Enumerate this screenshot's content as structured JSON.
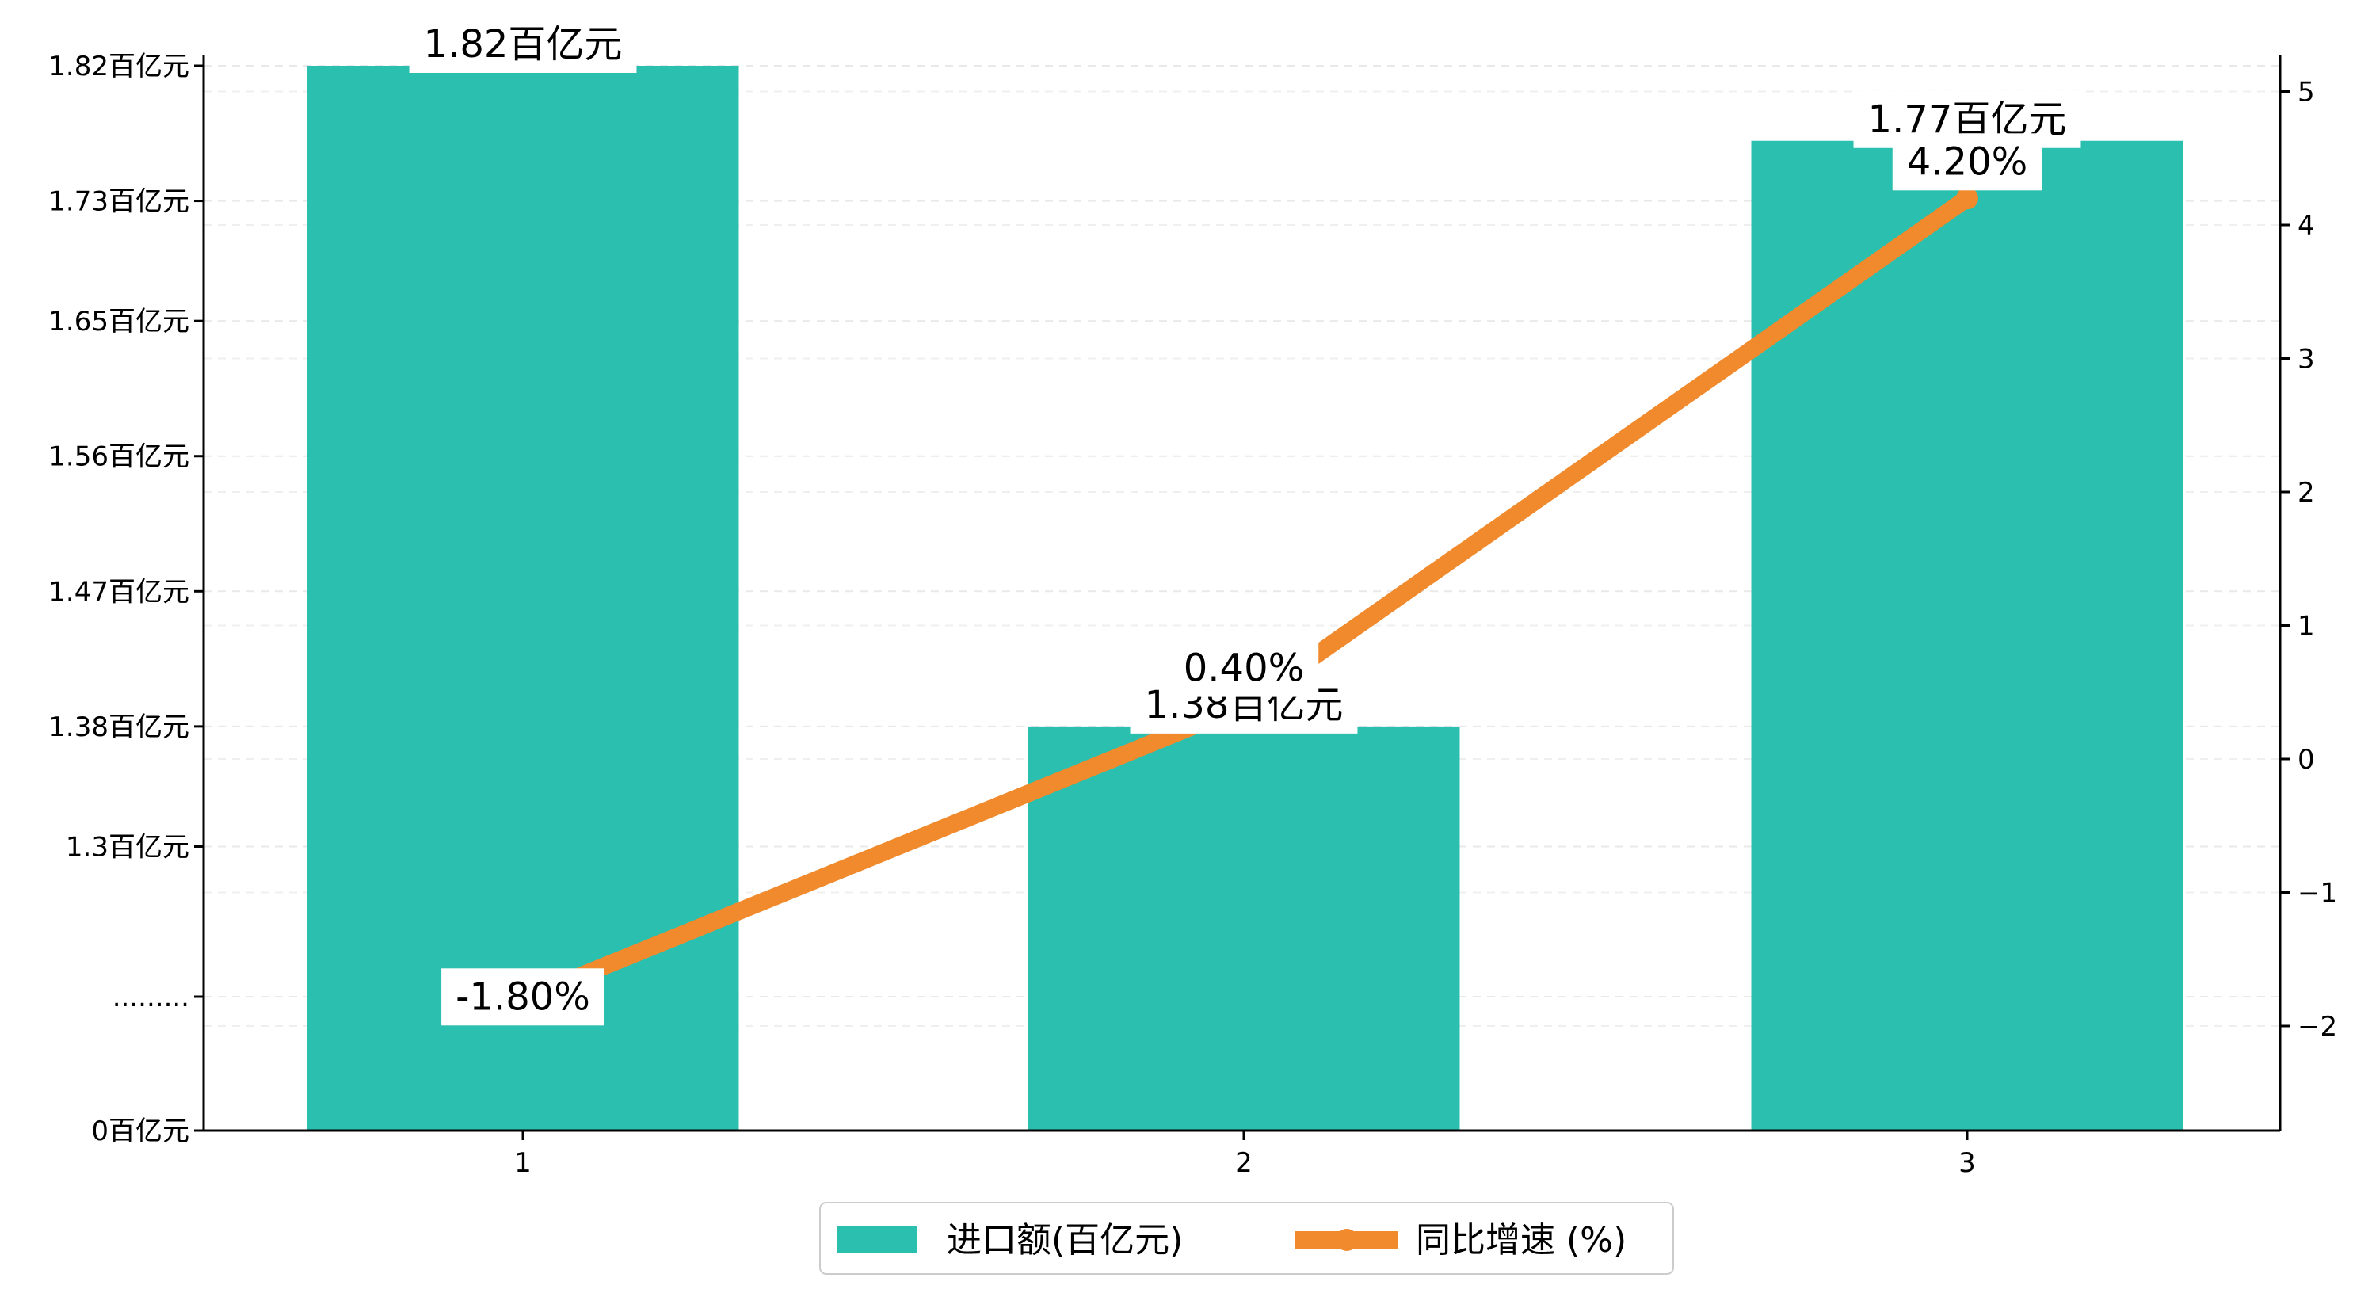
{
  "chart_data": {
    "type": "bar",
    "categories": [
      "1",
      "2",
      "3"
    ],
    "series": [
      {
        "name": "进口额(百亿元)",
        "type": "bar",
        "axis": "left",
        "values": [
          1.82,
          1.38,
          1.77
        ],
        "labels": [
          "1.82百亿元",
          "1.38百亿元",
          "1.77百亿元"
        ],
        "color": "#2bbfb0"
      },
      {
        "name": "同比增速 (%)",
        "type": "line",
        "axis": "right",
        "values": [
          -1.8,
          0.4,
          4.2
        ],
        "labels": [
          "-1.80%",
          "0.40%",
          "4.20%"
        ],
        "color": "#f08a2c"
      }
    ],
    "y_left": {
      "ticks": [
        0,
        1.2,
        1.3,
        1.38,
        1.47,
        1.56,
        1.65,
        1.73,
        1.82
      ],
      "tick_labels": [
        "0百亿元",
        ".........",
        "1.3百亿元",
        "1.38百亿元",
        "1.47百亿元",
        "1.56百亿元",
        "1.65百亿元",
        "1.73百亿元",
        "1.82百亿元"
      ],
      "axis_break": "between 0 and 1.2"
    },
    "y_right": {
      "range": [
        -2.8,
        5.2
      ],
      "ticks": [
        -2,
        -1,
        0,
        1,
        2,
        3,
        4,
        5
      ],
      "tick_labels": [
        "−2",
        "−1",
        "0",
        "1",
        "2",
        "3",
        "4",
        "5"
      ]
    },
    "grid": "horizontal dashed",
    "legend": "bottom-center"
  }
}
